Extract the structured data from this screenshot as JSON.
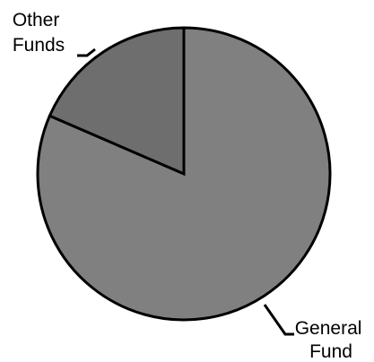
{
  "chart_data": {
    "type": "pie",
    "categories": [
      "General Fund",
      "Other Funds"
    ],
    "values": [
      81.5,
      18.5
    ],
    "label_lines": [
      [
        "General",
        "Fund"
      ],
      [
        "Other",
        "Funds"
      ]
    ],
    "colors": [
      "#808080",
      "#6e6e6e"
    ],
    "start_angle_deg": 0,
    "direction": "clockwise",
    "legend": "none"
  }
}
